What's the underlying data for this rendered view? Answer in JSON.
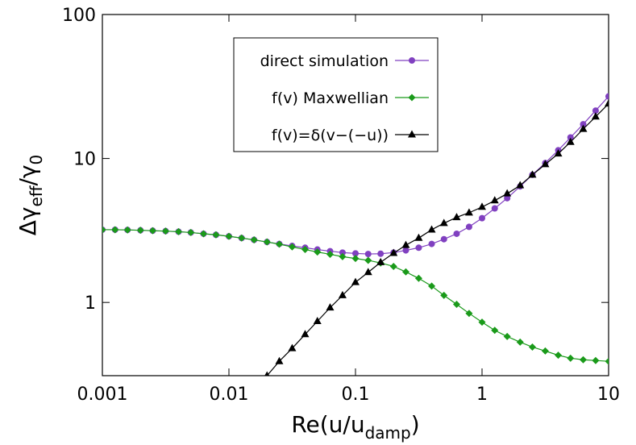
{
  "chart_data": {
    "type": "line",
    "log_x": true,
    "log_y": true,
    "xlabel": [
      "Re(u/u",
      "damp",
      ")"
    ],
    "ylabel": [
      "Δγ",
      "eff",
      "/γ",
      "0"
    ],
    "x": [
      0.001,
      0.00126,
      0.00158,
      0.002,
      0.0025,
      0.00316,
      0.004,
      0.005,
      0.0063,
      0.0079,
      0.01,
      0.0126,
      0.0158,
      0.02,
      0.025,
      0.0316,
      0.04,
      0.05,
      0.063,
      0.079,
      0.1,
      0.126,
      0.158,
      0.2,
      0.25,
      0.316,
      0.4,
      0.5,
      0.63,
      0.79,
      1,
      1.26,
      1.58,
      2,
      2.5,
      3.16,
      4,
      5,
      6.3,
      7.9,
      10
    ],
    "series": [
      {
        "name": "direct simulation",
        "color": "#8040c0",
        "marker": "circle",
        "values": [
          3.2,
          3.2,
          3.19,
          3.17,
          3.15,
          3.13,
          3.1,
          3.06,
          3.0,
          2.95,
          2.88,
          2.8,
          2.72,
          2.63,
          2.55,
          2.47,
          2.4,
          2.33,
          2.27,
          2.22,
          2.19,
          2.17,
          2.18,
          2.22,
          2.3,
          2.4,
          2.55,
          2.75,
          3.0,
          3.35,
          3.85,
          4.5,
          5.3,
          6.4,
          7.7,
          9.3,
          11.4,
          14,
          17.3,
          21.5,
          27
        ]
      },
      {
        "name": "f(v) Maxwellian",
        "color": "#1a9a1a",
        "marker": "diamond",
        "values": [
          3.2,
          3.2,
          3.19,
          3.17,
          3.15,
          3.13,
          3.1,
          3.06,
          3.0,
          2.95,
          2.88,
          2.8,
          2.72,
          2.63,
          2.54,
          2.43,
          2.33,
          2.24,
          2.16,
          2.08,
          2.02,
          1.96,
          1.88,
          1.78,
          1.63,
          1.47,
          1.3,
          1.12,
          0.97,
          0.84,
          0.73,
          0.64,
          0.58,
          0.53,
          0.49,
          0.46,
          0.43,
          0.41,
          0.4,
          0.395,
          0.39
        ]
      },
      {
        "name": "f(v)=δ(v−(−u))",
        "color": "#000000",
        "marker": "triangle",
        "values": [
          null,
          null,
          null,
          null,
          null,
          null,
          null,
          null,
          null,
          null,
          null,
          null,
          null,
          0.31,
          0.39,
          0.48,
          0.6,
          0.74,
          0.92,
          1.12,
          1.38,
          1.62,
          1.9,
          2.2,
          2.5,
          2.8,
          3.2,
          3.55,
          3.9,
          4.2,
          4.6,
          5.1,
          5.7,
          6.5,
          7.7,
          9.1,
          10.8,
          13,
          16,
          19.5,
          24
        ]
      }
    ],
    "xlim": [
      0.001,
      10
    ],
    "ylim": [
      0.31,
      100
    ],
    "xticks": [
      0.001,
      0.01,
      0.1,
      1,
      10
    ],
    "yticks": [
      1,
      10,
      100
    ],
    "grid": false,
    "legend": "top-center"
  }
}
